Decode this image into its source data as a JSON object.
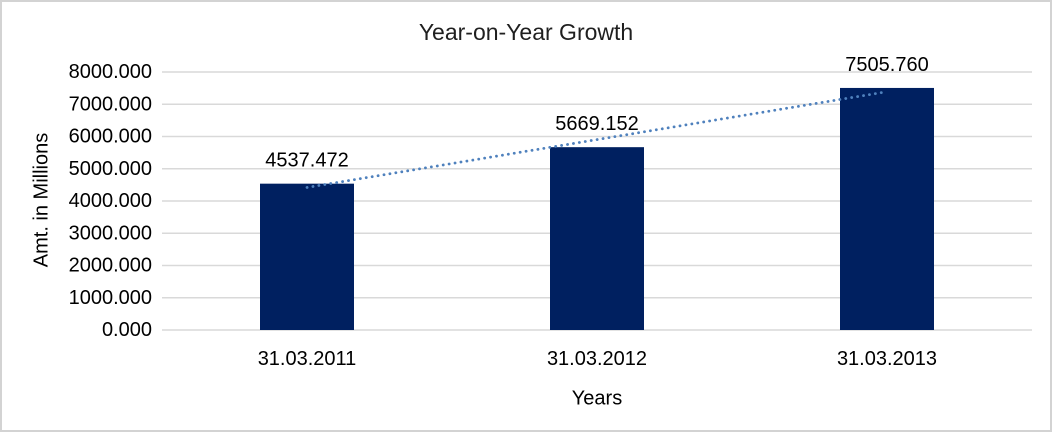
{
  "window": {
    "background": "#ffffff",
    "border_color": "#d3d3d3"
  },
  "chart_data": {
    "type": "bar",
    "title": "Year-on-Year Growth",
    "categories": [
      "31.03.2011",
      "31.03.2012",
      "31.03.2013"
    ],
    "values": [
      4537.472,
      5669.152,
      7505.76
    ],
    "data_labels": [
      "4537.472",
      "5669.152",
      "7505.760"
    ],
    "xlabel": "Years",
    "ylabel": "Amt. in Millions",
    "ylim": [
      0,
      8000
    ],
    "ytick_step": 1000,
    "ytick_labels": [
      "0.000",
      "1000.000",
      "2000.000",
      "3000.000",
      "4000.000",
      "5000.000",
      "6000.000",
      "7000.000",
      "8000.000"
    ],
    "grid": true,
    "legend": "none",
    "bar_color": "#002060",
    "gridline_color": "#d9d9d9",
    "tick_label_color": "#000000",
    "data_label_color": "#000000",
    "trendline": {
      "type": "linear",
      "style": "dotted",
      "color": "#4f81bd"
    }
  }
}
